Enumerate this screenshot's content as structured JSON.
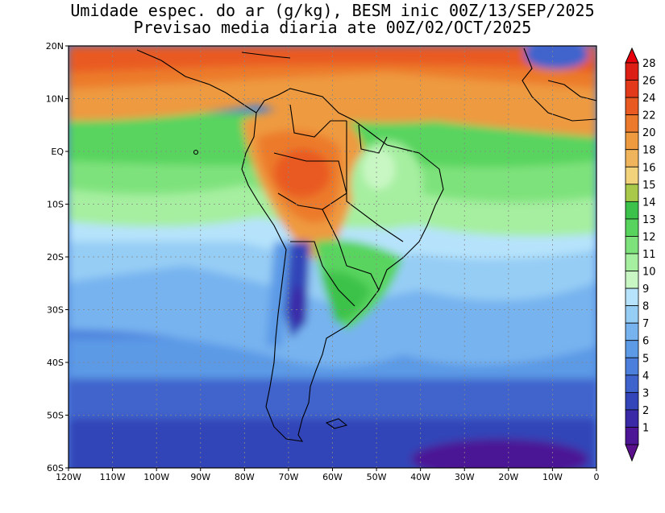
{
  "title": {
    "line1": "Umidade espec. do ar (g/kg), BESM inic 00Z/13/SEP/2025",
    "line2": "Previsao media diaria ate 00Z/02/OCT/2025"
  },
  "map": {
    "region": "South America and adjacent Atlantic/Pacific",
    "lon_range": [
      -120,
      0
    ],
    "lat_range": [
      -60,
      20
    ],
    "grid": true,
    "lat_ticks": [
      {
        "value": 20,
        "label": "20N"
      },
      {
        "value": 10,
        "label": "10N"
      },
      {
        "value": 0,
        "label": "EQ"
      },
      {
        "value": -10,
        "label": "10S"
      },
      {
        "value": -20,
        "label": "20S"
      },
      {
        "value": -30,
        "label": "30S"
      },
      {
        "value": -40,
        "label": "40S"
      },
      {
        "value": -50,
        "label": "50S"
      },
      {
        "value": -60,
        "label": "60S"
      }
    ],
    "lon_ticks": [
      {
        "value": -120,
        "label": "120W"
      },
      {
        "value": -110,
        "label": "110W"
      },
      {
        "value": -100,
        "label": "100W"
      },
      {
        "value": -90,
        "label": "90W"
      },
      {
        "value": -80,
        "label": "80W"
      },
      {
        "value": -70,
        "label": "70W"
      },
      {
        "value": -60,
        "label": "60W"
      },
      {
        "value": -50,
        "label": "50W"
      },
      {
        "value": -40,
        "label": "40W"
      },
      {
        "value": -30,
        "label": "30W"
      },
      {
        "value": -20,
        "label": "20W"
      },
      {
        "value": -10,
        "label": "10W"
      },
      {
        "value": 0,
        "label": "0"
      }
    ]
  },
  "colorbar": {
    "levels": [
      {
        "label": "1",
        "color": "#4b1596"
      },
      {
        "label": "2",
        "color": "#3b2aa8"
      },
      {
        "label": "3",
        "color": "#3345b8"
      },
      {
        "label": "4",
        "color": "#3f63cc"
      },
      {
        "label": "5",
        "color": "#4c7fdb"
      },
      {
        "label": "6",
        "color": "#5c9ae6"
      },
      {
        "label": "7",
        "color": "#77b3ef"
      },
      {
        "label": "8",
        "color": "#96cdf5"
      },
      {
        "label": "9",
        "color": "#b6e3fb"
      },
      {
        "label": "10",
        "color": "#c9f7c4"
      },
      {
        "label": "11",
        "color": "#a6efa0"
      },
      {
        "label": "12",
        "color": "#7ee27c"
      },
      {
        "label": "13",
        "color": "#58d45e"
      },
      {
        "label": "14",
        "color": "#3cc24a"
      },
      {
        "label": "15",
        "color": "#a8c84a"
      },
      {
        "label": "16",
        "color": "#f2d27a"
      },
      {
        "label": "18",
        "color": "#f0b45c"
      },
      {
        "label": "20",
        "color": "#ee9a3f"
      },
      {
        "label": "22",
        "color": "#ec7a2c"
      },
      {
        "label": "24",
        "color": "#e95a22"
      },
      {
        "label": "26",
        "color": "#e43a1c"
      },
      {
        "label": "28",
        "color": "#dc1e14"
      }
    ],
    "under_color": "#5a0f8c",
    "over_color": "#e8000c"
  }
}
